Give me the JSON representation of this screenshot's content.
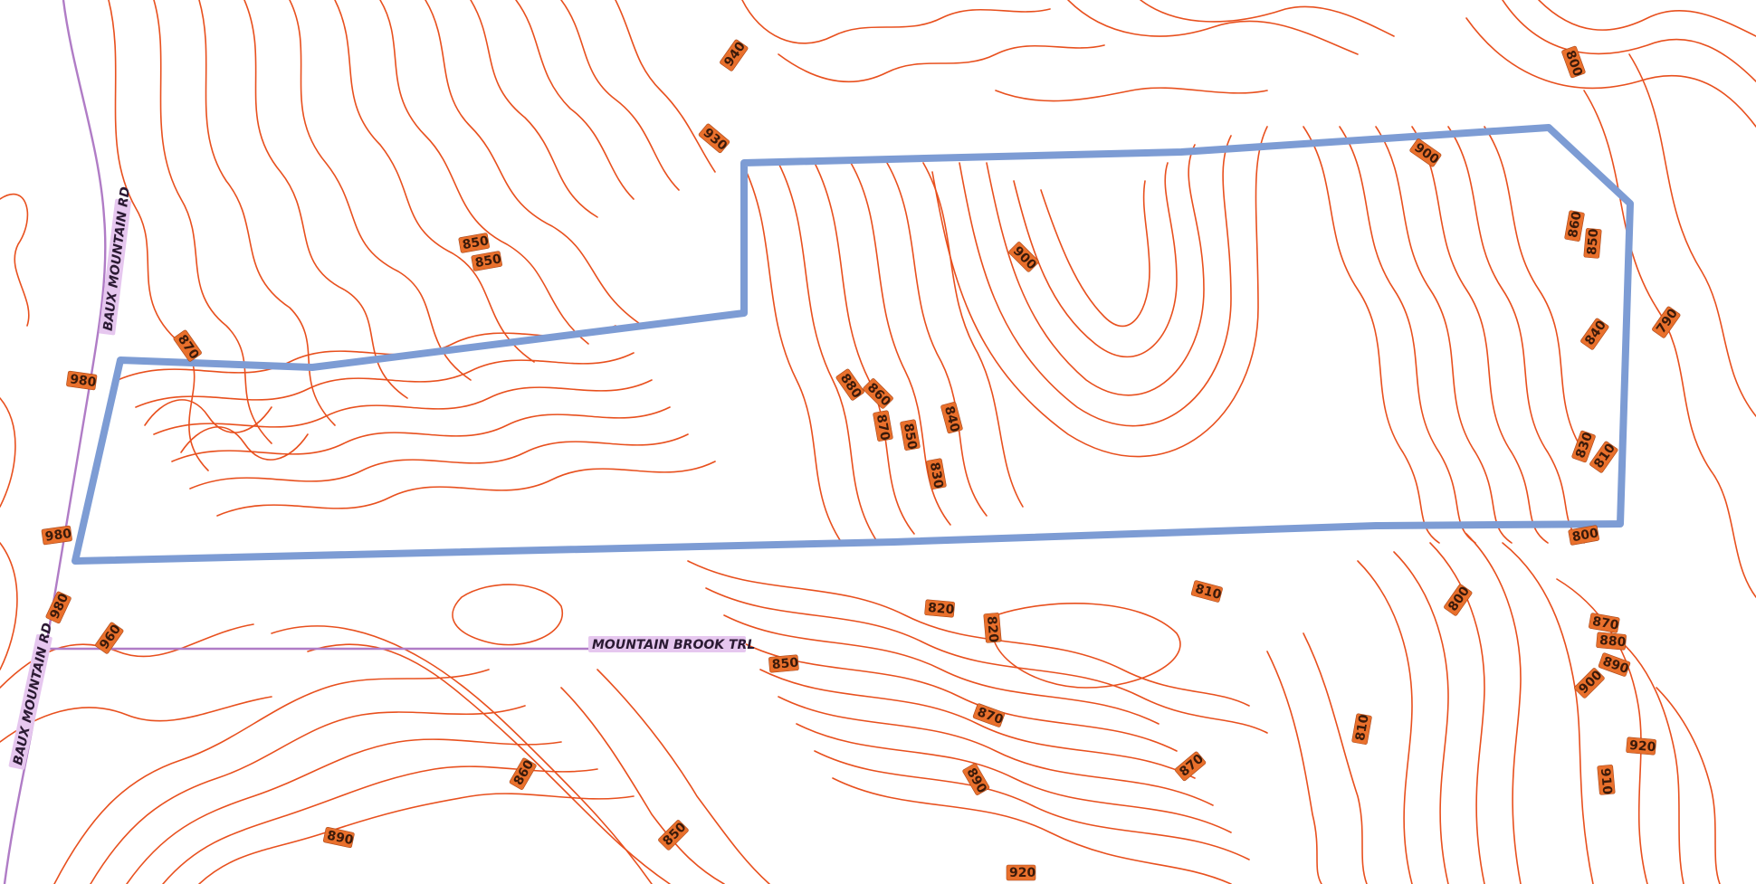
{
  "colors": {
    "contour": "#e8501e",
    "boundary": "#7d9cd4",
    "road": "#b07cc6",
    "label_fill": "#e9702c",
    "road_label_fill": "#e6c7ef"
  },
  "roads": [
    {
      "id": "baux-n",
      "name": "BAUX MOUNTAIN RD"
    },
    {
      "id": "baux-s",
      "name": "BAUX MOUNTAIN RD"
    },
    {
      "id": "mountain-brook",
      "name": "MOUNTAIN BROOK TRL"
    }
  ],
  "elevation_labels": [
    "940",
    "930",
    "850",
    "850",
    "870",
    "980",
    "980",
    "980",
    "960",
    "890",
    "880",
    "860",
    "870",
    "850",
    "840",
    "830",
    "900",
    "900",
    "800",
    "860",
    "850",
    "840",
    "790",
    "830",
    "810",
    "800",
    "800",
    "820",
    "820",
    "810",
    "850",
    "870",
    "870",
    "870",
    "880",
    "890",
    "900",
    "920",
    "910",
    "810",
    "860",
    "890",
    "850",
    "920"
  ],
  "icons": {
    "boundary": "parcel-boundary-icon",
    "contours": "contour-lines-icon"
  }
}
